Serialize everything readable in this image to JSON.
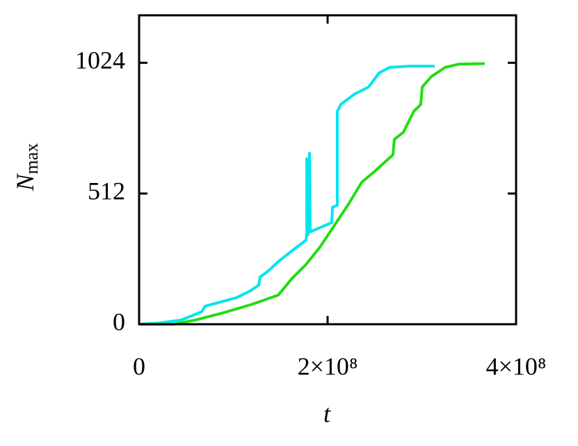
{
  "chart_data": {
    "type": "line",
    "xlabel": "t",
    "ylabel": {
      "symbol": "N",
      "subscript": "max"
    },
    "xlim": [
      0,
      400000000
    ],
    "ylim": [
      0,
      1210
    ],
    "xticks": [
      0,
      {
        "value": 200000000,
        "label": "2×10⁸"
      },
      {
        "value": 400000000,
        "label": "4×10⁸"
      }
    ],
    "yticks": [
      0,
      512,
      1024
    ],
    "grid": false,
    "series": [
      {
        "color": "#00e5ee",
        "x": [
          0,
          22100000,
          44300000,
          66400000,
          70100000,
          81200000,
          103300000,
          118100000,
          126900000,
          128400000,
          136500000,
          147600000,
          162400000,
          177100000,
          177900000,
          177900000,
          179300000,
          180800000,
          181500000,
          204400000,
          205200000,
          210300000,
          210300000,
          214000000,
          228800000,
          243500000,
          254600000,
          265700000,
          287800000,
          313700000
        ],
        "values": [
          0,
          5,
          16,
          49,
          71,
          82,
          104,
          131,
          153,
          185,
          207,
          245,
          288,
          329,
          357,
          648,
          351,
          670,
          362,
          398,
          458,
          466,
          833,
          861,
          902,
          929,
          984,
          1006,
          1011,
          1011
        ]
      },
      {
        "color": "#22dd11",
        "x": [
          0,
          36900000,
          59000000,
          88600000,
          118100000,
          147600000,
          162400000,
          177100000,
          191900000,
          206600000,
          221400000,
          236200000,
          250900000,
          269400000,
          270800000,
          280400000,
          291500000,
          298900000,
          300400000,
          310000000,
          324700000,
          339500000,
          366800000
        ],
        "values": [
          0,
          0,
          16,
          44,
          76,
          114,
          180,
          234,
          302,
          384,
          466,
          556,
          602,
          664,
          724,
          752,
          834,
          861,
          929,
          970,
          1006,
          1019,
          1021
        ]
      }
    ]
  }
}
